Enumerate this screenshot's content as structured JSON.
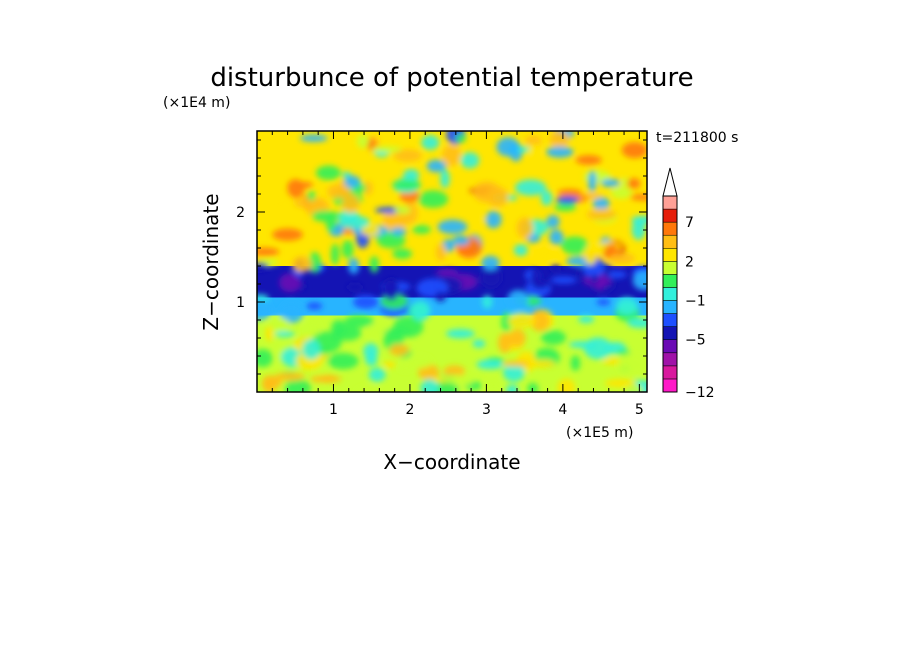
{
  "chart_data": {
    "type": "heatmap",
    "title": "disturbunce of potential temperature",
    "time_label": "t=211800 s",
    "xlabel": "X−coordinate",
    "ylabel": "Z−coordinate",
    "x_unit": "(×1E5 m)",
    "y_unit": "(×1E4 m)",
    "xlim": [
      0,
      5.1
    ],
    "ylim": [
      0,
      2.9
    ],
    "x_ticks": [
      {
        "value": 1,
        "label": "1"
      },
      {
        "value": 2,
        "label": "2"
      },
      {
        "value": 3,
        "label": "3"
      },
      {
        "value": 4,
        "label": "4"
      },
      {
        "value": 5,
        "label": "5"
      }
    ],
    "y_ticks": [
      {
        "value": 1,
        "label": "1"
      },
      {
        "value": 2,
        "label": "2"
      }
    ],
    "colorbar": {
      "levels": [
        -12,
        -10,
        -8,
        -6,
        -5,
        -3,
        -2,
        -1,
        0,
        1,
        2,
        3,
        5,
        7,
        8,
        10
      ],
      "labels": [
        {
          "value": -12,
          "label": "−12"
        },
        {
          "value": -5,
          "label": "−5"
        },
        {
          "value": -1,
          "label": "−1"
        },
        {
          "value": 2,
          "label": "2"
        },
        {
          "value": 7,
          "label": "7"
        }
      ],
      "colors": [
        "#ff19c8",
        "#d8189e",
        "#a012a8",
        "#6a0ab4",
        "#1414b4",
        "#1e50ff",
        "#28b4ff",
        "#32f0dc",
        "#32f05a",
        "#c8ff32",
        "#ffe600",
        "#ffbe14",
        "#ff780a",
        "#e61e0a",
        "#ffa096"
      ],
      "extend_max": true
    },
    "field_bands": [
      {
        "z_range": [
          0.0,
          0.45
        ],
        "description_level": 1.5
      },
      {
        "z_range": [
          0.45,
          0.85
        ],
        "description_level": 1.2
      },
      {
        "z_range": [
          0.85,
          1.05
        ],
        "description_level": -1.2
      },
      {
        "z_range": [
          1.05,
          1.4
        ],
        "description_level": -3.5
      },
      {
        "z_range": [
          1.4,
          2.9
        ],
        "description_level": 2.5
      }
    ]
  }
}
